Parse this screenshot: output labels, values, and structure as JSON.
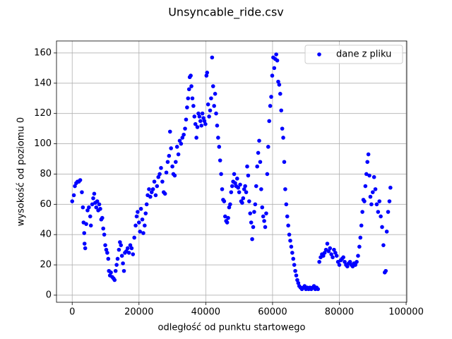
{
  "chart_data": {
    "type": "scatter",
    "title": "Unsyncable_ride.csv",
    "x_label": "odległość od punktu startowego",
    "y_label": "wysokość od poziomu 0",
    "xlim": [
      -4700,
      100200
    ],
    "ylim": [
      -4.7,
      167.9
    ],
    "xticks": [
      0,
      20000,
      40000,
      60000,
      80000,
      100000
    ],
    "yticks": [
      0,
      20,
      40,
      60,
      80,
      100,
      120,
      140,
      160
    ],
    "grid": true,
    "legend": "upper right",
    "x": [
      0,
      500,
      800,
      1200,
      1600,
      2000,
      2400,
      2900,
      3200,
      3400,
      3600,
      3700,
      3900,
      4200,
      4600,
      5000,
      5400,
      5600,
      6000,
      6300,
      6600,
      6900,
      7200,
      7500,
      7800,
      8100,
      8400,
      8700,
      9000,
      9300,
      9600,
      9900,
      10200,
      10500,
      10800,
      11000,
      11300,
      11600,
      12000,
      12400,
      12700,
      13000,
      13300,
      13600,
      14000,
      14300,
      14600,
      14900,
      15200,
      15500,
      15800,
      16200,
      16600,
      17000,
      17400,
      17800,
      18200,
      18600,
      19000,
      19300,
      19600,
      20000,
      20300,
      20600,
      21000,
      21300,
      21700,
      22000,
      22300,
      22600,
      23000,
      23400,
      23800,
      24200,
      24600,
      25000,
      25400,
      25800,
      26200,
      26600,
      27000,
      27400,
      27800,
      28200,
      28600,
      29000,
      29300,
      29600,
      30000,
      30300,
      30700,
      31000,
      31400,
      31800,
      32200,
      32600,
      33000,
      33400,
      33800,
      34100,
      34400,
      34700,
      35000,
      35200,
      35500,
      35700,
      36000,
      36300,
      36600,
      36900,
      37200,
      37500,
      37800,
      38100,
      38400,
      38700,
      39000,
      39300,
      39600,
      39900,
      40200,
      40400,
      40700,
      41000,
      41300,
      41600,
      41900,
      42200,
      42500,
      42800,
      43100,
      43400,
      43700,
      44000,
      44300,
      44600,
      44900,
      45200,
      45500,
      45800,
      46100,
      46400,
      46700,
      47000,
      47300,
      47600,
      47900,
      48200,
      48500,
      48800,
      49100,
      49400,
      49700,
      50000,
      50300,
      50600,
      50900,
      51200,
      51500,
      51800,
      52100,
      52400,
      52700,
      53000,
      53300,
      53600,
      53900,
      54200,
      54500,
      54800,
      55100,
      55400,
      55700,
      56000,
      56300,
      56600,
      56900,
      57200,
      57500,
      57800,
      58100,
      58400,
      58700,
      59000,
      59300,
      59600,
      59900,
      60200,
      60500,
      60800,
      61100,
      61400,
      61700,
      62000,
      62300,
      62600,
      62900,
      63200,
      63500,
      63800,
      64100,
      64400,
      64700,
      65000,
      65300,
      65600,
      65900,
      66200,
      66500,
      66800,
      67100,
      67400,
      67700,
      68000,
      68400,
      68800,
      69200,
      69600,
      70000,
      70400,
      70800,
      71200,
      71600,
      72000,
      72400,
      72800,
      73200,
      73600,
      74000,
      74400,
      74800,
      75200,
      75600,
      76000,
      76400,
      76800,
      77200,
      77600,
      78000,
      78400,
      78800,
      79200,
      79600,
      80000,
      80400,
      80800,
      81200,
      81600,
      82000,
      82400,
      82800,
      83200,
      83600,
      84000,
      84400,
      84800,
      85200,
      85600,
      86000,
      86300,
      86600,
      86900,
      87200,
      87500,
      87800,
      88100,
      88400,
      88700,
      89000,
      89300,
      89600,
      90000,
      90400,
      90800,
      91200,
      91600,
      92000,
      92400,
      92800,
      93200,
      93600,
      93900,
      94200,
      94600,
      95000,
      95300
    ],
    "series": [
      {
        "name": "dane z pliku",
        "color": "#0000ff",
        "values": [
          62,
          66,
          72,
          74,
          75,
          75,
          76,
          68,
          58,
          48,
          41,
          34,
          31,
          47,
          56,
          58,
          52,
          46,
          60,
          64,
          67,
          61,
          58,
          62,
          56,
          60,
          57,
          50,
          51,
          44,
          40,
          33,
          30,
          28,
          24,
          16,
          13,
          15,
          12,
          11,
          10,
          16,
          20,
          24,
          30,
          35,
          33,
          26,
          21,
          16,
          28,
          29,
          31,
          28,
          33,
          31,
          27,
          38,
          46,
          52,
          55,
          48,
          42,
          57,
          50,
          41,
          46,
          54,
          60,
          66,
          70,
          65,
          68,
          70,
          75,
          66,
          72,
          78,
          80,
          84,
          75,
          68,
          67,
          81,
          88,
          92,
          108,
          97,
          85,
          80,
          79,
          88,
          98,
          93,
          102,
          100,
          104,
          106,
          110,
          116,
          124,
          130,
          136,
          144,
          145,
          138,
          130,
          125,
          118,
          113,
          104,
          111,
          120,
          118,
          115,
          112,
          120,
          117,
          115,
          113,
          145,
          147,
          126,
          118,
          122,
          130,
          157,
          138,
          125,
          133,
          120,
          112,
          104,
          98,
          89,
          80,
          70,
          63,
          62,
          52,
          49,
          48,
          51,
          58,
          60,
          68,
          72,
          75,
          80,
          74,
          72,
          77,
          71,
          68,
          73,
          62,
          61,
          64,
          70,
          72,
          68,
          85,
          79,
          62,
          54,
          48,
          37,
          45,
          55,
          60,
          72,
          85,
          94,
          102,
          88,
          70,
          58,
          52,
          49,
          45,
          54,
          80,
          98,
          115,
          125,
          131,
          145,
          157,
          150,
          156,
          159,
          155,
          141,
          139,
          133,
          122,
          110,
          104,
          88,
          70,
          60,
          52,
          46,
          40,
          36,
          32,
          28,
          24,
          20,
          16,
          13,
          10,
          8,
          6,
          5,
          4,
          5,
          6,
          4,
          5,
          4,
          5,
          4,
          5,
          6,
          4,
          5,
          4,
          22,
          25,
          27,
          26,
          28,
          30,
          34,
          29,
          31,
          27,
          25,
          30,
          28,
          26,
          22,
          20,
          23,
          24,
          25,
          22,
          20,
          19,
          21,
          22,
          20,
          19,
          21,
          20,
          22,
          26,
          32,
          38,
          46,
          55,
          63,
          62,
          72,
          80,
          88,
          93,
          79,
          65,
          60,
          68,
          78,
          70,
          60,
          55,
          62,
          52,
          45,
          33,
          15,
          16,
          42,
          55,
          62,
          71
        ]
      }
    ]
  }
}
